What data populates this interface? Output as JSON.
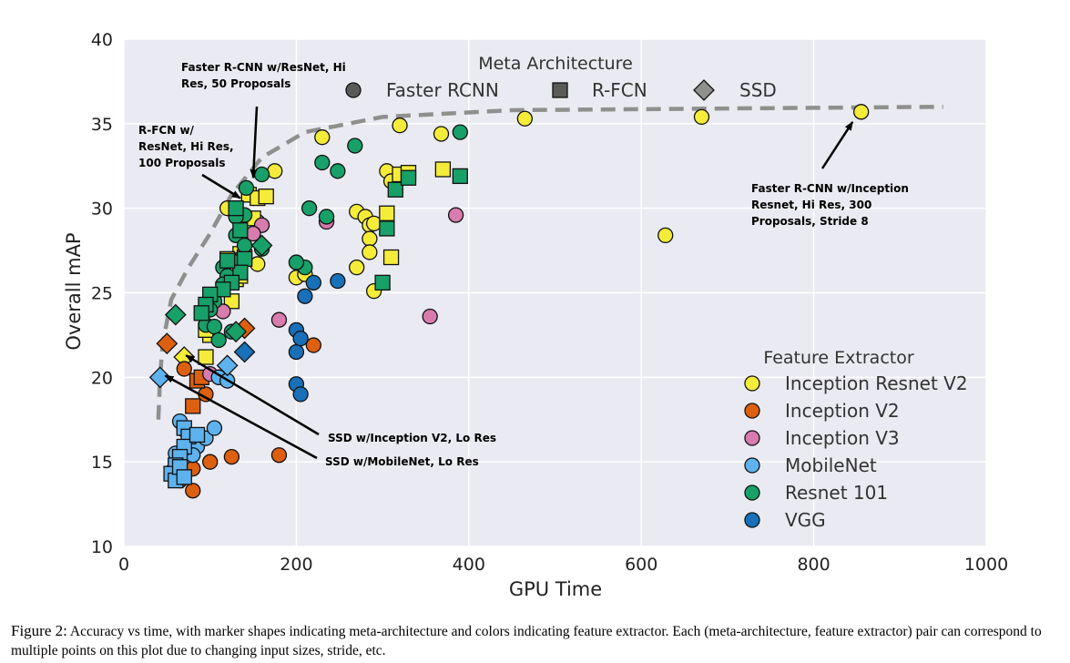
{
  "caption": {
    "label": "Figure 2:",
    "text": "Accuracy vs time, with marker shapes indicating meta-architecture and colors indicating feature extractor. Each (meta-architecture, feature extractor) pair can correspond to multiple points on this plot due to changing input sizes, stride, etc."
  },
  "chart_data": {
    "type": "scatter",
    "xlabel": "GPU Time",
    "ylabel": "Overall mAP",
    "xlim": [
      0,
      1000
    ],
    "ylim": [
      10,
      40
    ],
    "xticks": [
      0,
      200,
      400,
      600,
      800,
      1000
    ],
    "yticks": [
      10,
      15,
      20,
      25,
      30,
      35,
      40
    ],
    "grid": true,
    "legend_shape": {
      "title": "Meta Architecture",
      "placement": "top-center",
      "entries": [
        {
          "name": "Faster RCNN",
          "marker": "circle"
        },
        {
          "name": "R-FCN",
          "marker": "square"
        },
        {
          "name": "SSD",
          "marker": "diamond"
        }
      ]
    },
    "legend_color": {
      "title": "Feature Extractor",
      "placement": "bottom-right",
      "entries": [
        {
          "name": "Inception Resnet V2",
          "color": "#f5ec3a"
        },
        {
          "name": "Inception V2",
          "color": "#dd5f10"
        },
        {
          "name": "Inception V3",
          "color": "#d77cad"
        },
        {
          "name": "MobileNet",
          "color": "#5eb2ee"
        },
        {
          "name": "Resnet 101",
          "color": "#17a068"
        },
        {
          "name": "VGG",
          "color": "#1770b8"
        }
      ]
    },
    "frontier": [
      [
        40,
        17.5
      ],
      [
        42,
        20
      ],
      [
        45,
        22
      ],
      [
        55,
        24.6
      ],
      [
        75,
        26.5
      ],
      [
        100,
        28.5
      ],
      [
        125,
        30.8
      ],
      [
        160,
        33
      ],
      [
        210,
        34.5
      ],
      [
        300,
        35.4
      ],
      [
        450,
        35.8
      ],
      [
        700,
        35.9
      ],
      [
        950,
        36
      ]
    ],
    "series": [
      {
        "name": "Inception Resnet V2",
        "marker": "circle",
        "points": [
          [
            230,
            34.2
          ],
          [
            320,
            34.9
          ],
          [
            368,
            34.4
          ],
          [
            465,
            35.3
          ],
          [
            670,
            35.4
          ],
          [
            855,
            35.7
          ],
          [
            628,
            28.4
          ],
          [
            175,
            32.2
          ],
          [
            155,
            29.2
          ],
          [
            305,
            32.2
          ],
          [
            310,
            31.6
          ],
          [
            270,
            29.8
          ],
          [
            280,
            29.5
          ],
          [
            285,
            29.0
          ],
          [
            290,
            29.1
          ],
          [
            285,
            28.2
          ],
          [
            285,
            27.4
          ],
          [
            270,
            26.5
          ],
          [
            200,
            25.9
          ],
          [
            210,
            26.1
          ],
          [
            155,
            26.7
          ],
          [
            120,
            30
          ],
          [
            290,
            25.1
          ]
        ]
      },
      {
        "name": "Inception Resnet V2",
        "marker": "square",
        "points": [
          [
            145,
            30.8
          ],
          [
            155,
            30.6
          ],
          [
            165,
            30.7
          ],
          [
            150,
            29.4
          ],
          [
            135,
            27.3
          ],
          [
            140,
            27.1
          ],
          [
            130,
            25.8
          ],
          [
            135,
            26.0
          ],
          [
            125,
            24.5
          ],
          [
            100,
            22.5
          ],
          [
            95,
            22.8
          ],
          [
            95,
            21.2
          ],
          [
            120,
            27
          ],
          [
            305,
            29.7
          ],
          [
            310,
            27.1
          ],
          [
            320,
            32.0
          ],
          [
            330,
            32.1
          ],
          [
            370,
            32.3
          ]
        ]
      },
      {
        "name": "Inception Resnet V2",
        "marker": "diamond",
        "points": [
          [
            70,
            21.2
          ]
        ]
      },
      {
        "name": "Inception V2",
        "marker": "circle",
        "points": [
          [
            70,
            20.5
          ],
          [
            95,
            19
          ],
          [
            100,
            15
          ],
          [
            125,
            15.3
          ],
          [
            80,
            14.6
          ],
          [
            65,
            13.9
          ],
          [
            80,
            13.3
          ],
          [
            180,
            15.4
          ],
          [
            220,
            21.9
          ]
        ]
      },
      {
        "name": "Inception V2",
        "marker": "square",
        "points": [
          [
            85,
            19.8
          ],
          [
            90,
            20.0
          ],
          [
            80,
            18.3
          ]
        ]
      },
      {
        "name": "Inception V2",
        "marker": "diamond",
        "points": [
          [
            50,
            22.0
          ],
          [
            140,
            22.9
          ]
        ]
      },
      {
        "name": "Inception V3",
        "marker": "circle",
        "points": [
          [
            235,
            29.2
          ],
          [
            385,
            29.6
          ],
          [
            180,
            23.4
          ],
          [
            355,
            23.6
          ],
          [
            160,
            29
          ],
          [
            150,
            28.5
          ],
          [
            115,
            23.9
          ],
          [
            100,
            20.2
          ]
        ]
      },
      {
        "name": "MobileNet",
        "marker": "circle",
        "points": [
          [
            65,
            17.4
          ],
          [
            70,
            16.9
          ],
          [
            75,
            16.3
          ],
          [
            85,
            15.9
          ],
          [
            80,
            15.4
          ],
          [
            60,
            15.0
          ],
          [
            55,
            14.4
          ],
          [
            70,
            15.8
          ],
          [
            60,
            15.5
          ],
          [
            95,
            16.4
          ],
          [
            110,
            20
          ],
          [
            120,
            19.8
          ],
          [
            105,
            17
          ]
        ]
      },
      {
        "name": "MobileNet",
        "marker": "square",
        "points": [
          [
            70,
            17.0
          ],
          [
            75,
            16.5
          ],
          [
            70,
            15.9
          ],
          [
            65,
            15.3
          ],
          [
            60,
            14.8
          ],
          [
            55,
            14.3
          ],
          [
            60,
            13.9
          ],
          [
            65,
            14.7
          ],
          [
            70,
            14.1
          ],
          [
            85,
            16.6
          ]
        ]
      },
      {
        "name": "MobileNet",
        "marker": "diamond",
        "points": [
          [
            42,
            20.0
          ],
          [
            120,
            20.7
          ]
        ]
      },
      {
        "name": "Resnet 101",
        "marker": "circle",
        "points": [
          [
            142,
            31.2
          ],
          [
            160,
            32
          ],
          [
            230,
            32.7
          ],
          [
            248,
            32.2
          ],
          [
            268,
            33.7
          ],
          [
            390,
            34.5
          ],
          [
            215,
            30.0
          ],
          [
            235,
            29.5
          ],
          [
            140,
            29.6
          ],
          [
            130,
            29.5
          ],
          [
            130,
            28.4
          ],
          [
            140,
            27.8
          ],
          [
            160,
            27.6
          ],
          [
            135,
            27.0
          ],
          [
            125,
            26.9
          ],
          [
            115,
            26.5
          ],
          [
            120,
            26.0
          ],
          [
            115,
            25.5
          ],
          [
            105,
            24.5
          ],
          [
            100,
            24.0
          ],
          [
            95,
            23.1
          ],
          [
            105,
            23.0
          ],
          [
            110,
            22.2
          ],
          [
            125,
            22.7
          ],
          [
            210,
            26.5
          ],
          [
            200,
            26.8
          ]
        ]
      },
      {
        "name": "Resnet 101",
        "marker": "square",
        "points": [
          [
            130,
            30.0
          ],
          [
            135,
            28.7
          ],
          [
            140,
            27.0
          ],
          [
            135,
            26.2
          ],
          [
            125,
            25.6
          ],
          [
            115,
            25.2
          ],
          [
            100,
            24.9
          ],
          [
            95,
            24.3
          ],
          [
            90,
            23.8
          ],
          [
            120,
            26.9
          ],
          [
            300,
            25.6
          ],
          [
            305,
            28.8
          ],
          [
            315,
            31.1
          ],
          [
            330,
            31.8
          ],
          [
            390,
            31.9
          ]
        ]
      },
      {
        "name": "Resnet 101",
        "marker": "diamond",
        "points": [
          [
            60,
            23.7
          ],
          [
            160,
            27.8
          ],
          [
            130,
            22.7
          ]
        ]
      },
      {
        "name": "VGG",
        "marker": "circle",
        "points": [
          [
            200,
            22.8
          ],
          [
            200,
            21.5
          ],
          [
            205,
            22.3
          ],
          [
            220,
            25.6
          ],
          [
            210,
            24.8
          ],
          [
            248,
            25.7
          ],
          [
            200,
            19.6
          ],
          [
            205,
            19.0
          ]
        ]
      },
      {
        "name": "VGG",
        "marker": "diamond",
        "points": [
          [
            140,
            21.5
          ]
        ]
      }
    ],
    "annotations": [
      {
        "lines": [
          "Faster R-CNN w/ResNet, Hi",
          "Res, 50 Proposals"
        ],
        "target": [
          150,
          31.8
        ]
      },
      {
        "lines": [
          "R-FCN w/",
          "ResNet, Hi Res,",
          "100 Proposals"
        ],
        "target": [
          135,
          30.6
        ]
      },
      {
        "lines": [
          "Faster R-CNN w/Inception",
          "Resnet, Hi Res, 300",
          "Proposals, Stride 8"
        ],
        "target": [
          845,
          35.1
        ]
      },
      {
        "lines": [
          "SSD w/Inception V2, Lo Res"
        ],
        "target": [
          72,
          21.3
        ]
      },
      {
        "lines": [
          "SSD w/MobileNet, Lo Res"
        ],
        "target": [
          48,
          20.1
        ]
      }
    ]
  }
}
